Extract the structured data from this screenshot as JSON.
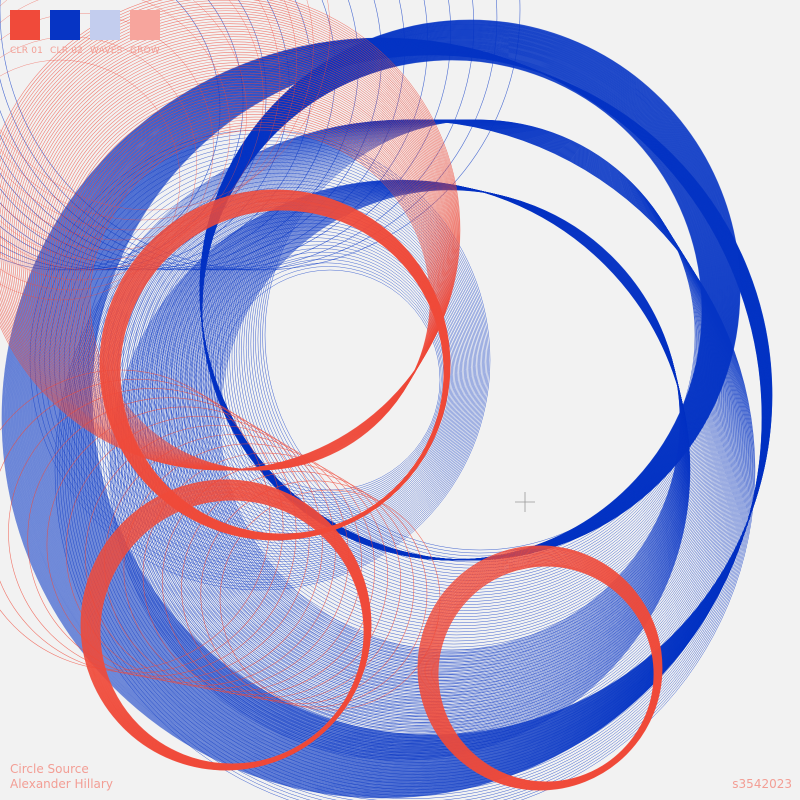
{
  "palette": {
    "red": "#f04a3a",
    "blue": "#0634c4",
    "light_blue": "#c3cdee",
    "pink": "#f7a59d",
    "label_color": "#f39e95",
    "background": "#f2f2f2"
  },
  "swatches": [
    {
      "label": "CLR 01",
      "color": "#f04a3a"
    },
    {
      "label": "CLR 02",
      "color": "#0634c4"
    },
    {
      "label": "WAVES",
      "color": "#c3cdee"
    },
    {
      "label": "GROW",
      "color": "#f7a59d"
    }
  ],
  "credit": {
    "title": "Circle Source",
    "author": "Alexander Hillary"
  },
  "serial": "s3542023"
}
